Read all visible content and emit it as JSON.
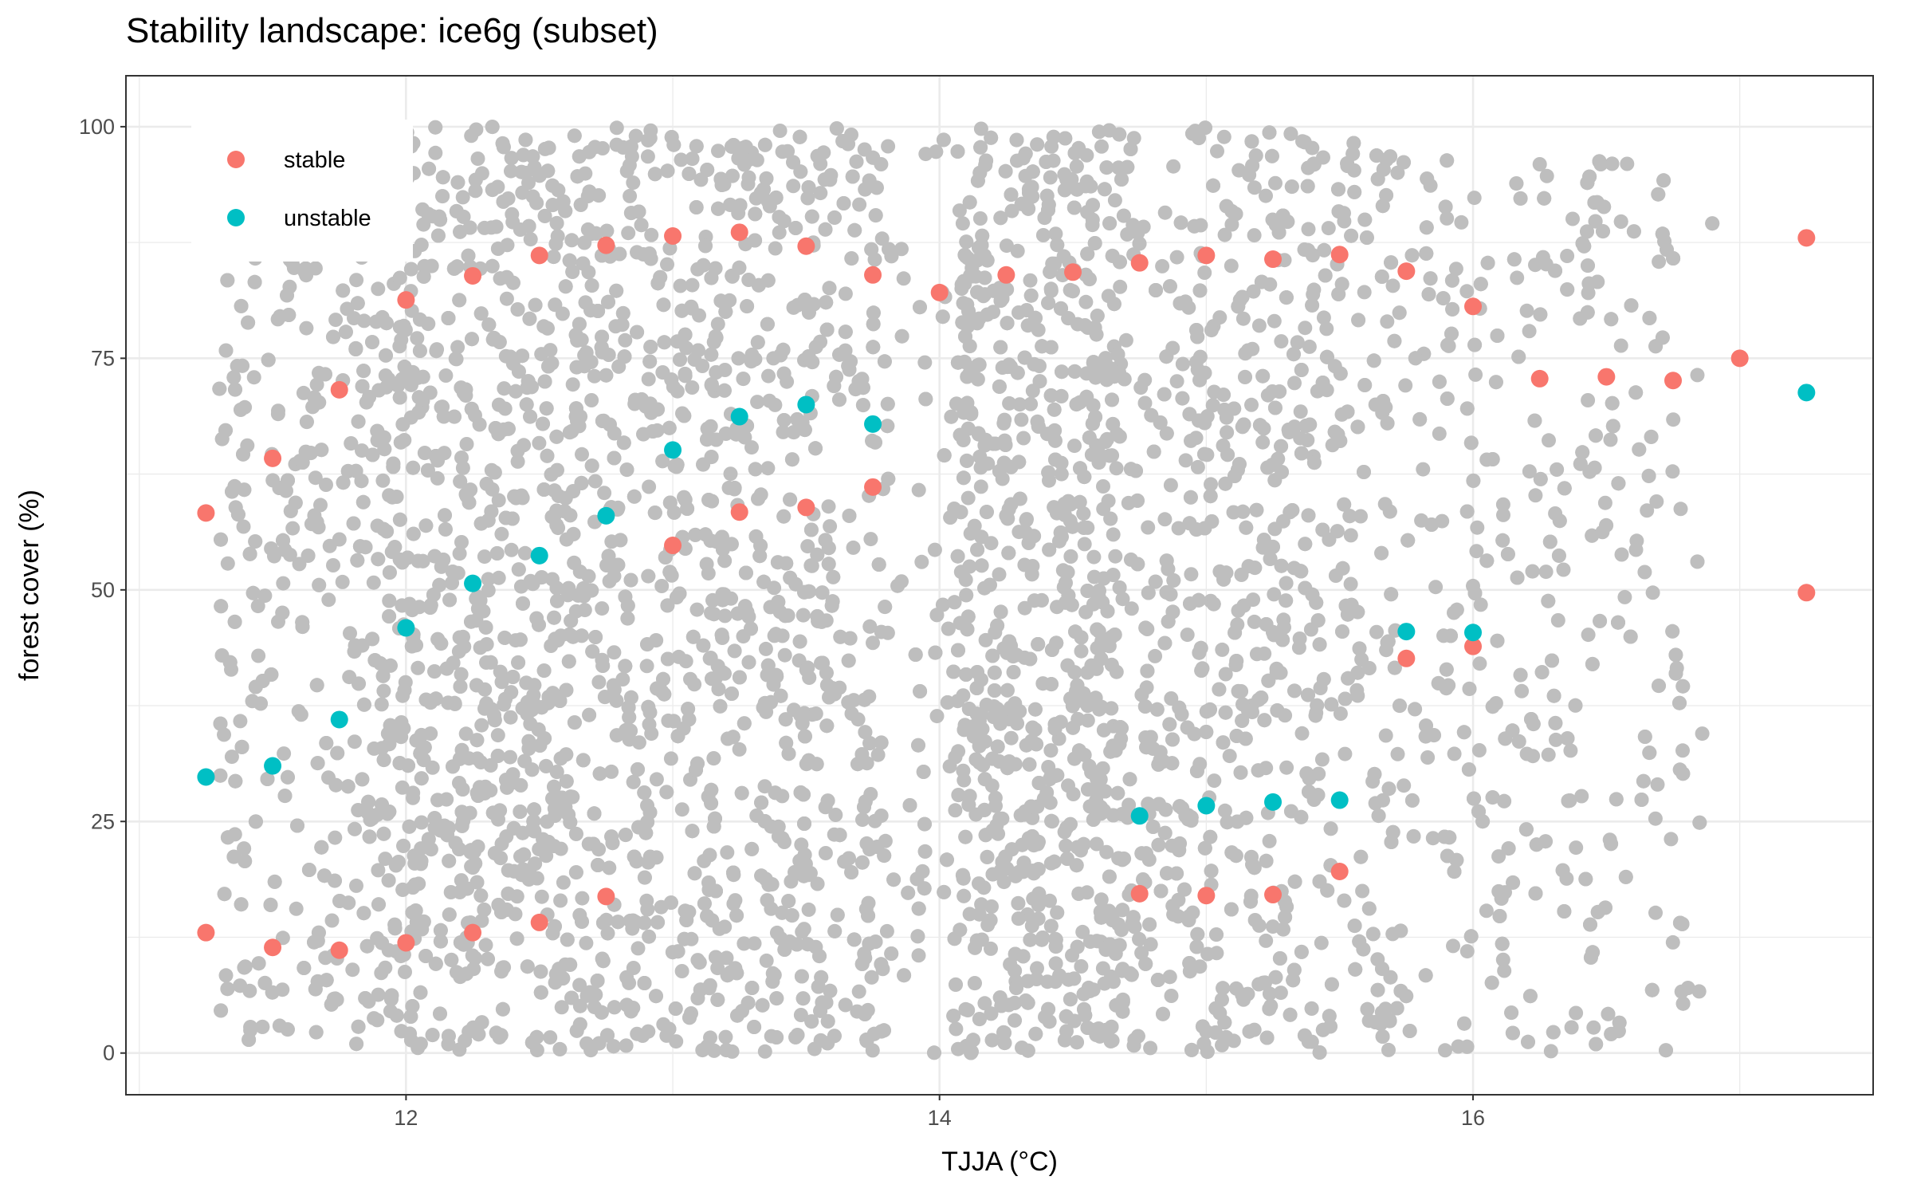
{
  "chart_data": {
    "type": "scatter",
    "title": "Stability landscape: ice6g (subset)",
    "xlabel": "TJJA (°C)",
    "ylabel": "forest cover (%)",
    "xlim": [
      10.95,
      17.5
    ],
    "ylim": [
      -4.5,
      105.5
    ],
    "x_ticks": [
      12,
      14,
      16
    ],
    "x_tick_labels": [
      "12",
      "14",
      "16"
    ],
    "y_ticks": [
      0,
      25,
      50,
      75,
      100
    ],
    "y_tick_labels": [
      "0",
      "25",
      "50",
      "75",
      "100"
    ],
    "grid": true,
    "legend_position": "top-left inside",
    "background_points": {
      "name": "",
      "color": "#bebebe",
      "description_count": 6000,
      "note": ""
    },
    "series": [
      {
        "name": "stable",
        "color": "#F8766D",
        "points": [
          [
            11.25,
            58.3
          ],
          [
            11.25,
            13.0
          ],
          [
            11.5,
            64.2
          ],
          [
            11.5,
            11.4
          ],
          [
            11.75,
            71.6
          ],
          [
            11.75,
            11.1
          ],
          [
            12.0,
            81.3
          ],
          [
            12.0,
            11.9
          ],
          [
            12.25,
            83.9
          ],
          [
            12.25,
            13.0
          ],
          [
            12.5,
            86.1
          ],
          [
            12.5,
            14.1
          ],
          [
            12.75,
            87.2
          ],
          [
            12.75,
            16.9
          ],
          [
            13.0,
            88.2
          ],
          [
            13.0,
            54.8
          ],
          [
            13.25,
            88.6
          ],
          [
            13.25,
            58.4
          ],
          [
            13.5,
            87.1
          ],
          [
            13.5,
            58.9
          ],
          [
            13.75,
            84.0
          ],
          [
            13.75,
            61.1
          ],
          [
            14.0,
            82.1
          ],
          [
            14.25,
            84.0
          ],
          [
            14.5,
            84.3
          ],
          [
            14.75,
            85.3
          ],
          [
            14.75,
            17.2
          ],
          [
            15.0,
            86.1
          ],
          [
            15.0,
            17.0
          ],
          [
            15.25,
            85.7
          ],
          [
            15.25,
            17.1
          ],
          [
            15.5,
            86.2
          ],
          [
            15.5,
            19.6
          ],
          [
            15.75,
            84.4
          ],
          [
            15.75,
            42.6
          ],
          [
            16.0,
            80.6
          ],
          [
            16.0,
            43.9
          ],
          [
            16.25,
            72.8
          ],
          [
            16.5,
            73.0
          ],
          [
            16.75,
            72.6
          ],
          [
            17.0,
            75.0
          ],
          [
            17.25,
            88.0
          ],
          [
            17.25,
            49.7
          ]
        ]
      },
      {
        "name": "unstable",
        "color": "#00BFC4",
        "points": [
          [
            11.25,
            29.8
          ],
          [
            11.5,
            31.0
          ],
          [
            11.75,
            36.0
          ],
          [
            12.0,
            45.9
          ],
          [
            12.25,
            50.7
          ],
          [
            12.5,
            53.7
          ],
          [
            12.75,
            58.0
          ],
          [
            13.0,
            65.1
          ],
          [
            13.25,
            68.7
          ],
          [
            13.5,
            70.0
          ],
          [
            13.75,
            67.9
          ],
          [
            14.75,
            25.6
          ],
          [
            15.0,
            26.7
          ],
          [
            15.25,
            27.1
          ],
          [
            15.5,
            27.3
          ],
          [
            15.75,
            45.5
          ],
          [
            16.0,
            45.4
          ],
          [
            17.25,
            71.3
          ]
        ]
      }
    ]
  }
}
